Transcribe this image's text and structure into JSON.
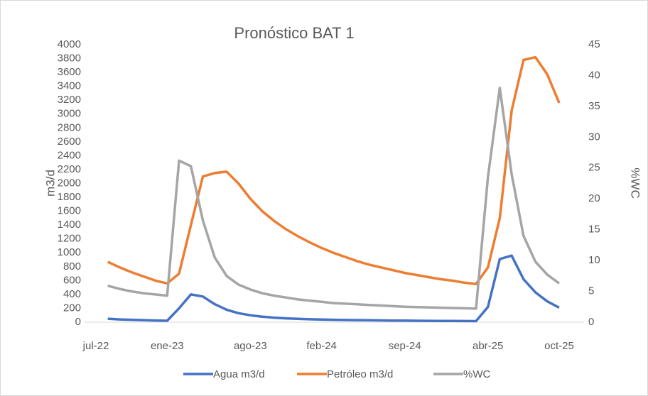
{
  "chart_data": {
    "type": "line",
    "title": "Pronóstico BAT 1",
    "y_label": "m3/d",
    "y2_label": "%WC",
    "categories": [
      "jul-22",
      null,
      null,
      null,
      null,
      null,
      "ene-23",
      null,
      null,
      null,
      null,
      null,
      null,
      "ago-23",
      null,
      null,
      null,
      null,
      null,
      "feb-24",
      null,
      null,
      null,
      null,
      null,
      null,
      "sep-24",
      null,
      null,
      null,
      null,
      null,
      null,
      "abr-25",
      null,
      null,
      null,
      null,
      null,
      "oct-25"
    ],
    "series": [
      {
        "name": "Agua m3/d",
        "color": "#4472c4",
        "values": [
          null,
          50,
          40,
          35,
          30,
          25,
          20,
          200,
          400,
          370,
          260,
          180,
          130,
          100,
          80,
          65,
          55,
          48,
          42,
          38,
          35,
          32,
          30,
          28,
          26,
          24,
          22,
          20,
          19,
          18,
          17,
          16,
          15,
          220,
          910,
          960,
          620,
          430,
          300,
          210
        ]
      },
      {
        "name": "Petróleo m3/d",
        "color": "#ed7d31",
        "values": [
          null,
          870,
          790,
          720,
          660,
          600,
          560,
          700,
          1400,
          2100,
          2150,
          2170,
          2000,
          1780,
          1600,
          1460,
          1340,
          1240,
          1150,
          1070,
          1000,
          940,
          880,
          830,
          790,
          750,
          710,
          680,
          650,
          620,
          600,
          570,
          550,
          790,
          1500,
          3050,
          3780,
          3820,
          3570,
          3160
        ]
      },
      {
        "name": "%WC",
        "color": "#a5a5a5",
        "axis": "y2",
        "values": [
          null,
          5.9,
          5.4,
          5.0,
          4.7,
          4.5,
          4.3,
          26.2,
          25.3,
          16.5,
          10.5,
          7.5,
          6.1,
          5.3,
          4.7,
          4.3,
          4.0,
          3.7,
          3.5,
          3.3,
          3.1,
          3.0,
          2.9,
          2.8,
          2.7,
          2.6,
          2.5,
          2.45,
          2.4,
          2.35,
          2.3,
          2.25,
          2.2,
          23.5,
          38,
          24,
          14,
          9.8,
          7.7,
          6.3
        ]
      }
    ],
    "ylim": [
      0,
      4000
    ],
    "yticks": [
      0,
      200,
      400,
      600,
      800,
      1000,
      1200,
      1400,
      1600,
      1800,
      2000,
      2200,
      2400,
      2600,
      2800,
      3000,
      3200,
      3400,
      3600,
      3800,
      4000
    ],
    "y2lim": [
      0,
      45
    ],
    "y2ticks": [
      0,
      5,
      10,
      15,
      20,
      25,
      30,
      35,
      40,
      45
    ],
    "grid": false,
    "legend": "bottom"
  }
}
